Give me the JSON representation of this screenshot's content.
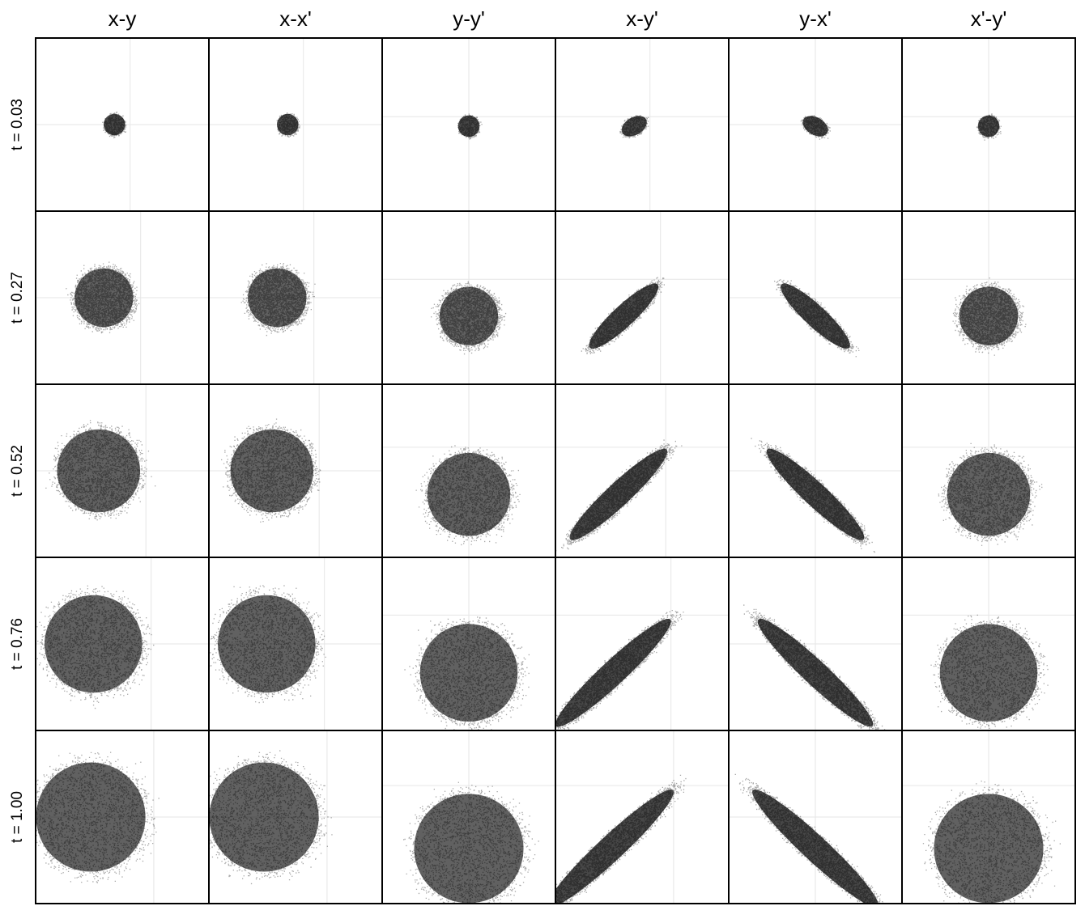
{
  "chart_data": {
    "type": "scatter",
    "title": "",
    "columns": [
      "x-y",
      "x-x'",
      "y-y'",
      "x-y'",
      "y-x'",
      "x'-y'"
    ],
    "rows": [
      "t = 0.03",
      "t = 0.27",
      "t = 0.52",
      "t = 0.76",
      "t = 1.00"
    ],
    "t_values": [
      0.03,
      0.27,
      0.52,
      0.76,
      1.0
    ],
    "grid": true,
    "point_color": "#000000",
    "gridline_color": "#e6e6e6",
    "frame_color": "#000000",
    "distributions": [
      {
        "t": 0.03,
        "panels": [
          {
            "pair": "x-y",
            "center": [
              -0.15,
              0.0
            ],
            "semi_axes": [
              0.22,
              0.22
            ],
            "angle_deg": 0,
            "gridline": [
              0.15,
              0.0
            ]
          },
          {
            "pair": "x-x'",
            "center": [
              -0.15,
              0.0
            ],
            "semi_axes": [
              0.22,
              0.22
            ],
            "angle_deg": 0,
            "gridline": [
              0.15,
              0.0
            ]
          },
          {
            "pair": "y-y'",
            "center": [
              0.0,
              -0.03
            ],
            "semi_axes": [
              0.22,
              0.22
            ],
            "angle_deg": 0,
            "gridline": [
              0.0,
              0.15
            ]
          },
          {
            "pair": "x-y'",
            "center": [
              -0.15,
              -0.03
            ],
            "semi_axes": [
              0.28,
              0.18
            ],
            "angle_deg": 30,
            "gridline": [
              0.15,
              0.15
            ]
          },
          {
            "pair": "y-x'",
            "center": [
              0.0,
              -0.03
            ],
            "semi_axes": [
              0.28,
              0.18
            ],
            "angle_deg": -30,
            "gridline": [
              0.0,
              0.0
            ]
          },
          {
            "pair": "x'-y'",
            "center": [
              0.0,
              -0.03
            ],
            "semi_axes": [
              0.22,
              0.22
            ],
            "angle_deg": 0,
            "gridline": [
              0.0,
              0.15
            ]
          }
        ]
      },
      {
        "t": 0.27,
        "panels": [
          {
            "pair": "x-y",
            "center": [
              -0.35,
              0.0
            ],
            "semi_axes": [
              0.6,
              0.6
            ],
            "angle_deg": 0,
            "gridline": [
              0.35,
              0.0
            ]
          },
          {
            "pair": "x-x'",
            "center": [
              -0.35,
              0.0
            ],
            "semi_axes": [
              0.6,
              0.6
            ],
            "angle_deg": 0,
            "gridline": [
              0.35,
              0.0
            ]
          },
          {
            "pair": "y-y'",
            "center": [
              0.0,
              -0.35
            ],
            "semi_axes": [
              0.6,
              0.6
            ],
            "angle_deg": 0,
            "gridline": [
              0.0,
              0.35
            ]
          },
          {
            "pair": "x-y'",
            "center": [
              -0.35,
              -0.35
            ],
            "semi_axes": [
              0.95,
              0.22
            ],
            "angle_deg": 43,
            "gridline": [
              0.35,
              0.35
            ]
          },
          {
            "pair": "y-x'",
            "center": [
              0.0,
              -0.35
            ],
            "semi_axes": [
              0.95,
              0.22
            ],
            "angle_deg": -43,
            "gridline": [
              0.0,
              0.0
            ]
          },
          {
            "pair": "x'-y'",
            "center": [
              0.0,
              -0.35
            ],
            "semi_axes": [
              0.6,
              0.6
            ],
            "angle_deg": 0,
            "gridline": [
              0.0,
              0.35
            ]
          }
        ]
      },
      {
        "t": 0.52,
        "panels": [
          {
            "pair": "x-y",
            "center": [
              -0.45,
              0.0
            ],
            "semi_axes": [
              0.85,
              0.85
            ],
            "angle_deg": 0,
            "gridline": [
              0.45,
              0.0
            ]
          },
          {
            "pair": "x-x'",
            "center": [
              -0.45,
              0.0
            ],
            "semi_axes": [
              0.85,
              0.85
            ],
            "angle_deg": 0,
            "gridline": [
              0.45,
              0.0
            ]
          },
          {
            "pair": "y-y'",
            "center": [
              0.0,
              -0.45
            ],
            "semi_axes": [
              0.85,
              0.85
            ],
            "angle_deg": 0,
            "gridline": [
              0.0,
              0.45
            ]
          },
          {
            "pair": "x-y'",
            "center": [
              -0.45,
              -0.45
            ],
            "semi_axes": [
              1.35,
              0.24
            ],
            "angle_deg": 43,
            "gridline": [
              0.45,
              0.45
            ]
          },
          {
            "pair": "y-x'",
            "center": [
              0.0,
              -0.45
            ],
            "semi_axes": [
              1.35,
              0.24
            ],
            "angle_deg": -43,
            "gridline": [
              0.0,
              0.0
            ]
          },
          {
            "pair": "x'-y'",
            "center": [
              0.0,
              -0.45
            ],
            "semi_axes": [
              0.85,
              0.85
            ],
            "angle_deg": 0,
            "gridline": [
              0.0,
              0.45
            ]
          }
        ]
      },
      {
        "t": 0.76,
        "panels": [
          {
            "pair": "x-y",
            "center": [
              -0.55,
              0.0
            ],
            "semi_axes": [
              1.0,
              1.0
            ],
            "angle_deg": 0,
            "gridline": [
              0.55,
              0.0
            ]
          },
          {
            "pair": "x-x'",
            "center": [
              -0.55,
              0.0
            ],
            "semi_axes": [
              1.0,
              1.0
            ],
            "angle_deg": 0,
            "gridline": [
              0.55,
              0.0
            ]
          },
          {
            "pair": "y-y'",
            "center": [
              0.0,
              -0.55
            ],
            "semi_axes": [
              1.0,
              1.0
            ],
            "angle_deg": 0,
            "gridline": [
              0.0,
              0.55
            ]
          },
          {
            "pair": "x-y'",
            "center": [
              -0.55,
              -0.55
            ],
            "semi_axes": [
              1.6,
              0.25
            ],
            "angle_deg": 43,
            "gridline": [
              0.55,
              0.55
            ]
          },
          {
            "pair": "y-x'",
            "center": [
              0.0,
              -0.55
            ],
            "semi_axes": [
              1.6,
              0.25
            ],
            "angle_deg": -43,
            "gridline": [
              0.0,
              0.0
            ]
          },
          {
            "pair": "x'-y'",
            "center": [
              0.0,
              -0.55
            ],
            "semi_axes": [
              1.0,
              1.0
            ],
            "angle_deg": 0,
            "gridline": [
              0.0,
              0.55
            ]
          }
        ]
      },
      {
        "t": 1.0,
        "panels": [
          {
            "pair": "x-y",
            "center": [
              -0.6,
              0.0
            ],
            "semi_axes": [
              1.12,
              1.12
            ],
            "angle_deg": 0,
            "gridline": [
              0.6,
              0.0
            ]
          },
          {
            "pair": "x-x'",
            "center": [
              -0.6,
              0.0
            ],
            "semi_axes": [
              1.12,
              1.12
            ],
            "angle_deg": 0,
            "gridline": [
              0.6,
              0.0
            ]
          },
          {
            "pair": "y-y'",
            "center": [
              0.0,
              -0.6
            ],
            "semi_axes": [
              1.12,
              1.12
            ],
            "angle_deg": 0,
            "gridline": [
              0.0,
              0.6
            ]
          },
          {
            "pair": "x-y'",
            "center": [
              -0.6,
              -0.6
            ],
            "semi_axes": [
              1.75,
              0.26
            ],
            "angle_deg": 43,
            "gridline": [
              0.6,
              0.6
            ]
          },
          {
            "pair": "y-x'",
            "center": [
              0.0,
              -0.6
            ],
            "semi_axes": [
              1.75,
              0.26
            ],
            "angle_deg": -43,
            "gridline": [
              0.0,
              0.0
            ]
          },
          {
            "pair": "x'-y'",
            "center": [
              0.0,
              -0.6
            ],
            "semi_axes": [
              1.12,
              1.12
            ],
            "angle_deg": 0,
            "gridline": [
              0.0,
              0.6
            ]
          }
        ]
      }
    ],
    "axis_range": [
      -1.65,
      1.65
    ]
  }
}
